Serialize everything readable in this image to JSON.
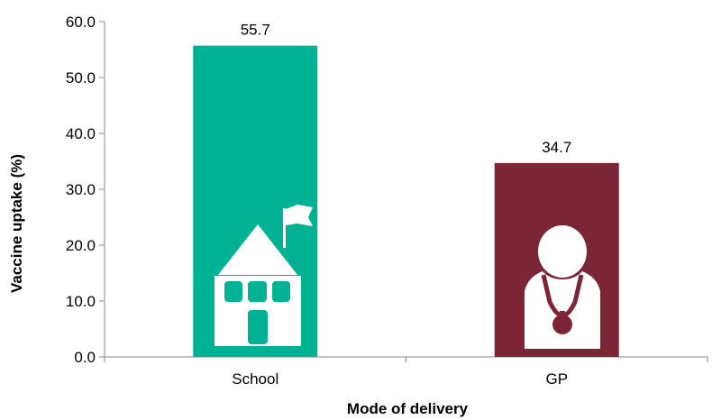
{
  "chart_data": {
    "type": "bar",
    "categories": [
      "School",
      "GP"
    ],
    "values": [
      55.7,
      34.7
    ],
    "value_labels": [
      "55.7",
      "34.7"
    ],
    "colors": [
      "#00B294",
      "#7B2536"
    ],
    "title": "",
    "xlabel": "Mode of delivery",
    "ylabel": "Vaccine uptake (%)",
    "ylim": [
      0,
      60
    ],
    "yticks": [
      "0.0",
      "10.0",
      "20.0",
      "30.0",
      "40.0",
      "50.0",
      "60.0"
    ],
    "grid": false,
    "legend": "none",
    "icons": [
      "school-building-icon",
      "doctor-stethoscope-icon"
    ]
  }
}
